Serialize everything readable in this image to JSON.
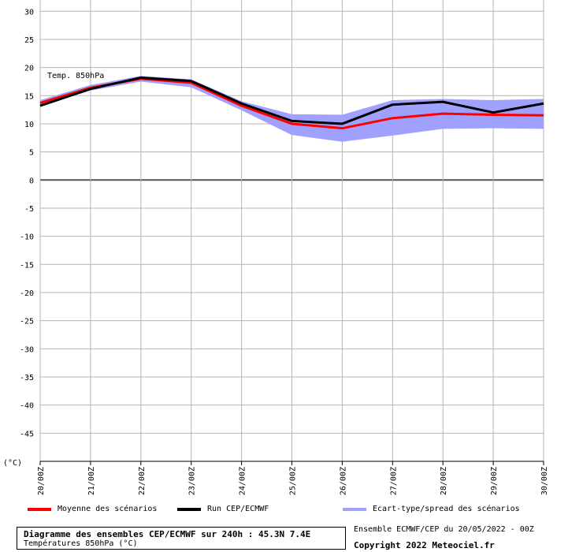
{
  "chart_data": {
    "type": "line",
    "title": "Temp. 850hPa",
    "ylabel": "(°C)",
    "ylim": [
      -50,
      32
    ],
    "yticks": [
      30,
      25,
      20,
      15,
      10,
      5,
      0,
      -5,
      -10,
      -15,
      -20,
      -25,
      -30,
      -35,
      -40,
      -45
    ],
    "categories": [
      "20/00Z",
      "21/00Z",
      "22/00Z",
      "23/00Z",
      "24/00Z",
      "25/00Z",
      "26/00Z",
      "27/00Z",
      "28/00Z",
      "29/00Z",
      "30/00Z"
    ],
    "grid": true,
    "series": [
      {
        "name": "Moyenne des scénarios",
        "color": "#ff0000",
        "values": [
          13.7,
          16.4,
          18.0,
          17.3,
          13.2,
          10.0,
          9.2,
          11.0,
          11.8,
          11.6,
          11.5
        ]
      },
      {
        "name": "Run CEP/ECMWF",
        "color": "#000000",
        "values": [
          13.2,
          16.2,
          18.2,
          17.6,
          13.6,
          10.5,
          10.0,
          13.4,
          13.9,
          12.0,
          13.6
        ]
      }
    ],
    "band": {
      "name": "Ecart-type/spread des scénarios",
      "color": "#a0a0ff",
      "upper": [
        14.2,
        16.9,
        18.5,
        17.9,
        14.0,
        11.7,
        11.6,
        14.2,
        14.4,
        14.2,
        14.4
      ],
      "lower": [
        13.2,
        15.9,
        17.5,
        16.5,
        12.4,
        8.0,
        6.8,
        7.9,
        9.1,
        9.2,
        9.1
      ]
    }
  },
  "legend": {
    "mean": "Moyenne des scénarios",
    "run": "Run CEP/ECMWF",
    "spread": "Ecart-type/spread des scénarios"
  },
  "footer": {
    "title": "Diagramme des ensembles CEP/ECMWF sur 240h : 45.3N 7.4E",
    "subtitle": "Températures 850hPa (°C)",
    "run_info": "Ensemble ECMWF/CEP du 20/05/2022 - 00Z",
    "copyright": "Copyright 2022 Meteociel.fr"
  }
}
